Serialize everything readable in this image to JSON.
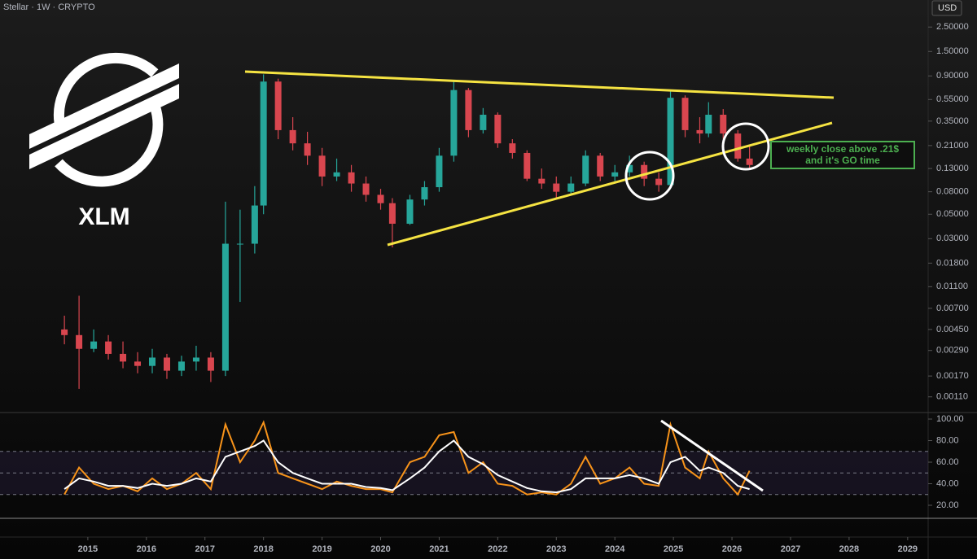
{
  "chart_data": [
    {
      "type": "candlestick",
      "title": "Stellar · 1W · CRYPTO",
      "currency": "USD",
      "logo_text": "XLM",
      "annotation": [
        "weekly close above .21$",
        "and it's GO time"
      ],
      "log_scale": true,
      "grid": false,
      "up_color": "#26a69a",
      "down_color": "#d9464f",
      "x": [
        2014.6,
        2014.85,
        2015.1,
        2015.35,
        2015.6,
        2015.85,
        2016.1,
        2016.35,
        2016.6,
        2016.85,
        2017.1,
        2017.35,
        2017.6,
        2017.85,
        2018.0,
        2018.25,
        2018.5,
        2018.75,
        2019.0,
        2019.25,
        2019.5,
        2019.75,
        2020.0,
        2020.2,
        2020.5,
        2020.75,
        2021.0,
        2021.25,
        2021.5,
        2021.75,
        2022.0,
        2022.25,
        2022.5,
        2022.75,
        2023.0,
        2023.25,
        2023.5,
        2023.75,
        2024.0,
        2024.25,
        2024.5,
        2024.75,
        2024.95,
        2025.2,
        2025.45,
        2025.6,
        2025.85,
        2026.1,
        2026.3
      ],
      "open": [
        0.0045,
        0.004,
        0.003,
        0.0035,
        0.0027,
        0.0023,
        0.0021,
        0.0025,
        0.0019,
        0.0023,
        0.0025,
        0.0019,
        0.027,
        0.027,
        0.06,
        0.8,
        0.29,
        0.22,
        0.17,
        0.11,
        0.12,
        0.095,
        0.075,
        0.063,
        0.041,
        0.068,
        0.088,
        0.17,
        0.67,
        0.29,
        0.4,
        0.22,
        0.18,
        0.105,
        0.095,
        0.08,
        0.095,
        0.17,
        0.11,
        0.12,
        0.14,
        0.105,
        0.092,
        0.57,
        0.29,
        0.27,
        0.4,
        0.27,
        0.16
      ],
      "high": [
        0.006,
        0.0091,
        0.0045,
        0.004,
        0.0035,
        0.0028,
        0.003,
        0.0027,
        0.0026,
        0.0032,
        0.0028,
        0.065,
        0.055,
        0.09,
        0.93,
        0.85,
        0.38,
        0.28,
        0.2,
        0.16,
        0.14,
        0.11,
        0.085,
        0.07,
        0.075,
        0.1,
        0.2,
        0.8,
        0.7,
        0.46,
        0.42,
        0.24,
        0.19,
        0.13,
        0.11,
        0.11,
        0.19,
        0.18,
        0.14,
        0.17,
        0.15,
        0.12,
        0.65,
        0.6,
        0.38,
        0.52,
        0.45,
        0.29,
        0.21
      ],
      "low": [
        0.0033,
        0.0013,
        0.0028,
        0.0024,
        0.002,
        0.0018,
        0.0018,
        0.0016,
        0.0017,
        0.0019,
        0.0015,
        0.0017,
        0.008,
        0.022,
        0.05,
        0.24,
        0.19,
        0.14,
        0.09,
        0.1,
        0.08,
        0.065,
        0.055,
        0.025,
        0.04,
        0.06,
        0.08,
        0.15,
        0.25,
        0.27,
        0.2,
        0.16,
        0.1,
        0.085,
        0.07,
        0.075,
        0.09,
        0.1,
        0.1,
        0.11,
        0.09,
        0.08,
        0.085,
        0.25,
        0.22,
        0.25,
        0.24,
        0.15,
        0.13
      ],
      "close": [
        0.004,
        0.003,
        0.0035,
        0.0027,
        0.0023,
        0.0021,
        0.0025,
        0.0019,
        0.0023,
        0.0025,
        0.0019,
        0.027,
        0.027,
        0.06,
        0.8,
        0.29,
        0.22,
        0.17,
        0.11,
        0.12,
        0.095,
        0.075,
        0.063,
        0.041,
        0.068,
        0.088,
        0.17,
        0.67,
        0.29,
        0.4,
        0.22,
        0.18,
        0.105,
        0.095,
        0.08,
        0.095,
        0.17,
        0.11,
        0.12,
        0.14,
        0.105,
        0.092,
        0.57,
        0.29,
        0.27,
        0.4,
        0.27,
        0.16,
        0.14
      ],
      "xlim": [
        2013.5,
        2029.35
      ],
      "xticks": [
        2015,
        2016,
        2017,
        2018,
        2019,
        2020,
        2021,
        2022,
        2023,
        2024,
        2025,
        2026,
        2027,
        2028,
        2029
      ],
      "ylim": [
        0.00082,
        4.4
      ],
      "yticks": [
        {
          "value": 2.5,
          "label": "2.50000"
        },
        {
          "value": 1.5,
          "label": "1.50000"
        },
        {
          "value": 0.9,
          "label": "0.90000"
        },
        {
          "value": 0.55,
          "label": "0.55000"
        },
        {
          "value": 0.35,
          "label": "0.35000"
        },
        {
          "value": 0.21,
          "label": "0.21000"
        },
        {
          "value": 0.13,
          "label": "0.13000"
        },
        {
          "value": 0.08,
          "label": "0.08000"
        },
        {
          "value": 0.05,
          "label": "0.05000"
        },
        {
          "value": 0.03,
          "label": "0.03000"
        },
        {
          "value": 0.018,
          "label": "0.01800"
        },
        {
          "value": 0.011,
          "label": "0.01100"
        },
        {
          "value": 0.007,
          "label": "0.00700"
        },
        {
          "value": 0.0045,
          "label": "0.00450"
        },
        {
          "value": 0.0029,
          "label": "0.00290"
        },
        {
          "value": 0.0017,
          "label": "0.00170"
        },
        {
          "value": 0.0011,
          "label": "0.00110"
        }
      ]
    },
    {
      "type": "line",
      "x": [
        2014.6,
        2014.85,
        2015.1,
        2015.35,
        2015.6,
        2015.85,
        2016.1,
        2016.35,
        2016.6,
        2016.85,
        2017.1,
        2017.35,
        2017.6,
        2017.85,
        2018.0,
        2018.25,
        2018.5,
        2018.75,
        2019.0,
        2019.25,
        2019.5,
        2019.75,
        2020.0,
        2020.2,
        2020.5,
        2020.75,
        2021.0,
        2021.25,
        2021.5,
        2021.75,
        2022.0,
        2022.25,
        2022.5,
        2022.75,
        2023.0,
        2023.25,
        2023.5,
        2023.75,
        2024.0,
        2024.25,
        2024.5,
        2024.75,
        2024.95,
        2025.2,
        2025.45,
        2025.6,
        2025.85,
        2026.1,
        2026.3
      ],
      "series": [
        {
          "color": "#f7931a",
          "values": [
            30,
            55,
            40,
            35,
            38,
            33,
            45,
            35,
            40,
            50,
            35,
            95,
            60,
            80,
            97,
            50,
            45,
            40,
            35,
            42,
            38,
            35,
            35,
            32,
            60,
            65,
            85,
            88,
            50,
            60,
            40,
            38,
            30,
            32,
            30,
            40,
            65,
            40,
            45,
            55,
            40,
            38,
            95,
            55,
            45,
            70,
            45,
            30,
            52
          ]
        },
        {
          "color": "#ffffff",
          "values": [
            35,
            45,
            42,
            38,
            38,
            36,
            40,
            38,
            40,
            45,
            42,
            65,
            70,
            75,
            80,
            60,
            50,
            45,
            40,
            40,
            40,
            37,
            36,
            34,
            45,
            55,
            70,
            80,
            65,
            58,
            48,
            42,
            36,
            33,
            32,
            35,
            45,
            45,
            45,
            48,
            45,
            40,
            60,
            65,
            52,
            55,
            50,
            38,
            35
          ]
        }
      ],
      "reference_lines": [
        30,
        50,
        70
      ],
      "xlim": [
        2013.5,
        2029.35
      ],
      "ylim": [
        7.9,
        105.3
      ],
      "yticks": [
        {
          "value": 100,
          "label": "100.00"
        },
        {
          "value": 80,
          "label": "80.00"
        },
        {
          "value": 60,
          "label": "60.00"
        },
        {
          "value": 40,
          "label": "40.00"
        },
        {
          "value": 20,
          "label": "20.00"
        }
      ]
    }
  ]
}
